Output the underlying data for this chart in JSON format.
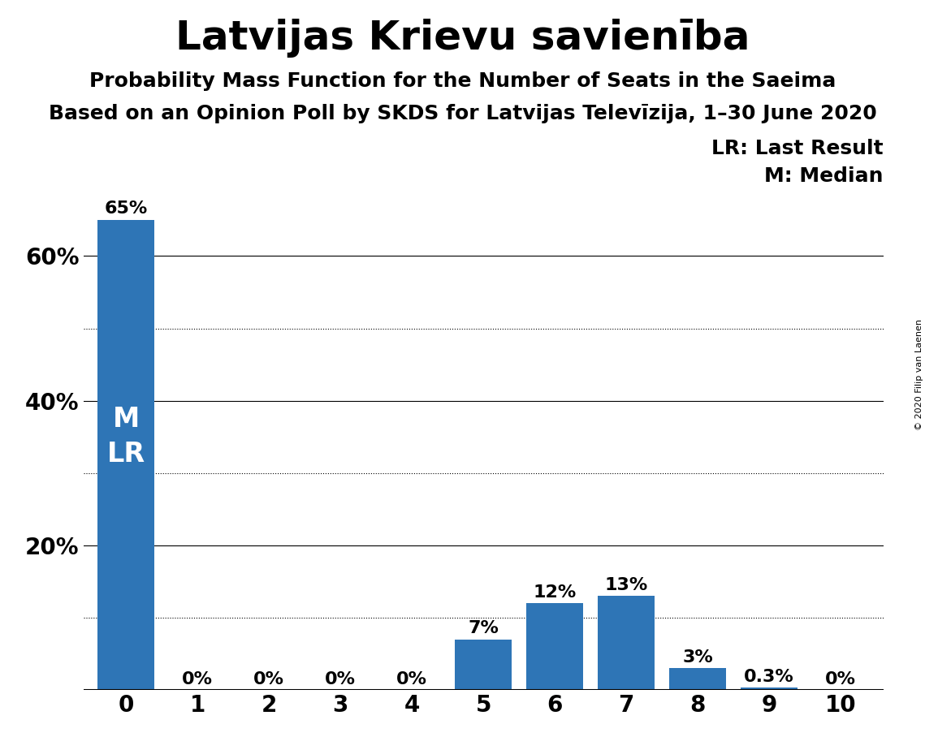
{
  "title": "Latvijas Krievu savienība",
  "subtitle1": "Probability Mass Function for the Number of Seats in the Saeima",
  "subtitle2": "Based on an Opinion Poll by SKDS for Latvijas Televīzija, 1–30 June 2020",
  "copyright": "© 2020 Filip van Laenen",
  "categories": [
    0,
    1,
    2,
    3,
    4,
    5,
    6,
    7,
    8,
    9,
    10
  ],
  "values": [
    0.65,
    0.0,
    0.0,
    0.0,
    0.0,
    0.07,
    0.12,
    0.13,
    0.03,
    0.003,
    0.0
  ],
  "bar_labels": [
    "65%",
    "0%",
    "0%",
    "0%",
    "0%",
    "7%",
    "12%",
    "13%",
    "3%",
    "0.3%",
    "0%"
  ],
  "bar_color": "#2e75b6",
  "ylim": [
    0,
    0.7
  ],
  "yticks": [
    0.0,
    0.2,
    0.4,
    0.6
  ],
  "ytick_labels": [
    "",
    "20%",
    "40%",
    "60%"
  ],
  "grid_solid": [
    0.2,
    0.4,
    0.6
  ],
  "grid_dotted": [
    0.1,
    0.3,
    0.5
  ],
  "background_color": "#ffffff",
  "bar_label_fontsize": 16,
  "title_fontsize": 36,
  "subtitle1_fontsize": 18,
  "subtitle2_fontsize": 18,
  "axis_tick_fontsize": 20,
  "legend_fontsize": 18,
  "ml_fontsize": 24,
  "legend_lr": "LR: Last Result",
  "legend_m": "M: Median"
}
